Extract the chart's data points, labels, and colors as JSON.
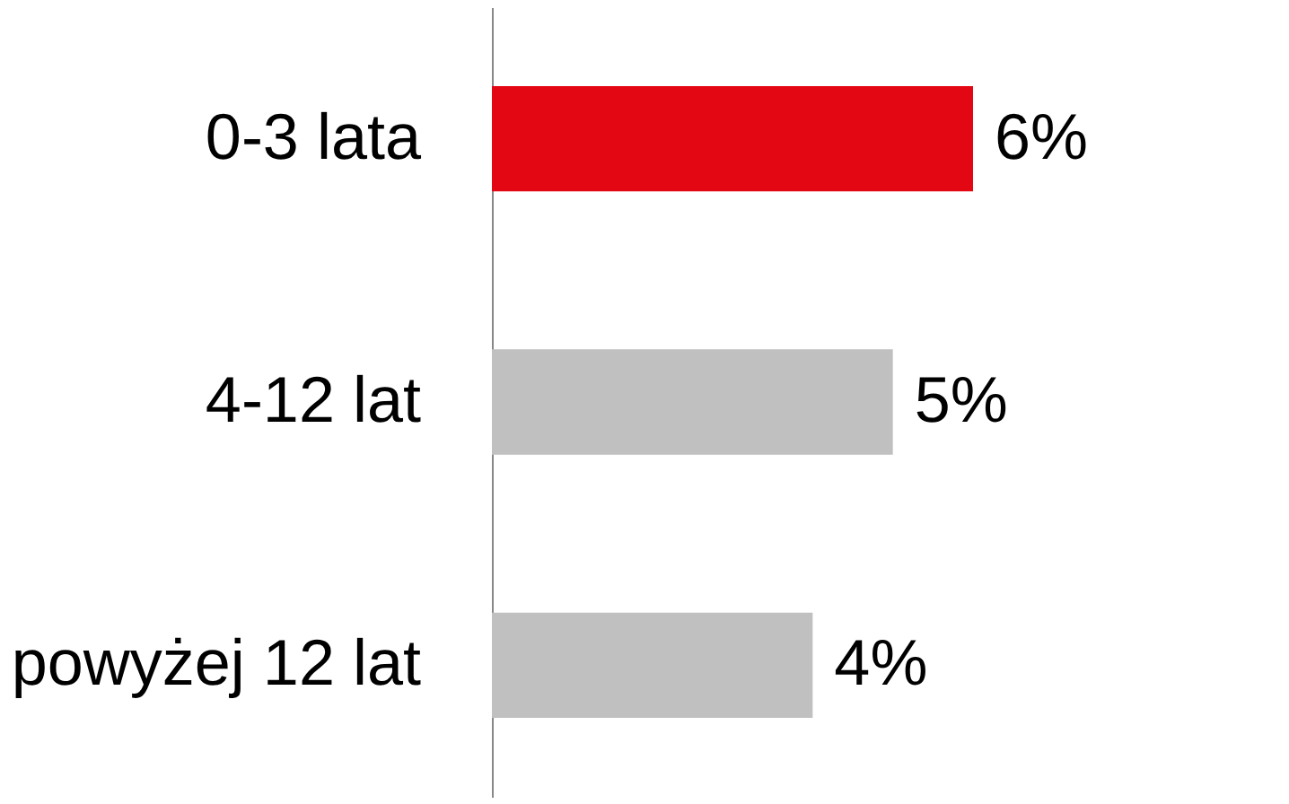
{
  "chart_data": {
    "type": "bar",
    "orientation": "horizontal",
    "categories": [
      "0-3 lata",
      "4-12 lat",
      "powyżej 12 lat"
    ],
    "values": [
      6,
      5,
      4
    ],
    "colors": [
      "#e30613",
      "#c0c0c0",
      "#c0c0c0"
    ],
    "value_labels": [
      "6%",
      "5%",
      "4%"
    ]
  }
}
